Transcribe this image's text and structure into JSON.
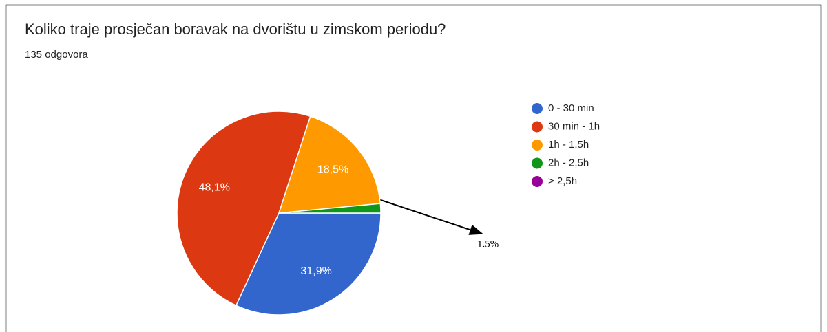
{
  "chart_data": {
    "type": "pie",
    "title": "Koliko traje prosječan boravak na dvorištu u zimskom periodu?",
    "subtitle": "135 odgovora",
    "categories": [
      "0 - 30 min",
      "30 min - 1h",
      "1h - 1,5h",
      "2h - 2,5h",
      "> 2,5h"
    ],
    "values": [
      31.9,
      48.1,
      18.5,
      1.5,
      0
    ],
    "value_labels": [
      "31,9%",
      "48,1%",
      "18,5%",
      null,
      null
    ],
    "colors": [
      "#3366cc",
      "#dc3912",
      "#ff9900",
      "#109618",
      "#990099"
    ],
    "annotation": "1.5%",
    "legend": "right"
  }
}
